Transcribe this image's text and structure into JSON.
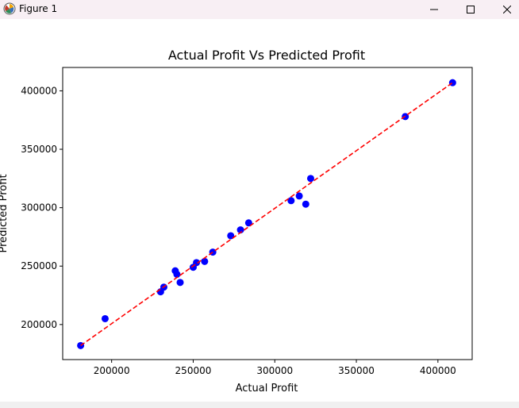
{
  "window": {
    "title": "Figure 1",
    "controls": [
      "minimize-icon",
      "maximize-icon",
      "close-icon"
    ]
  },
  "chart_data": {
    "type": "scatter",
    "title": "Actual Profit Vs Predicted Profit",
    "xlabel": "Actual Profit",
    "ylabel": "Predicted Profit",
    "xlim": [
      170000,
      421000
    ],
    "ylim": [
      170000,
      420000
    ],
    "xticks": [
      200000,
      250000,
      300000,
      350000,
      400000
    ],
    "yticks": [
      200000,
      250000,
      300000,
      350000,
      400000
    ],
    "grid": false,
    "legend": "none",
    "colors": {
      "points": "#0000ff",
      "fit_line": "#ff0000"
    },
    "series": [
      {
        "kind": "points",
        "x": [
          181000,
          196000,
          230000,
          232000,
          239000,
          240000,
          242000,
          250000,
          252000,
          257000,
          262000,
          273000,
          279000,
          284000,
          310000,
          315000,
          319000,
          322000,
          380000,
          409000
        ],
        "y": [
          182000,
          205000,
          228000,
          232000,
          246000,
          243000,
          236000,
          249000,
          253000,
          254000,
          262000,
          276000,
          281000,
          287000,
          306000,
          310000,
          303000,
          325000,
          378000,
          407000
        ]
      },
      {
        "kind": "dashed-line",
        "x": [
          181000,
          409000
        ],
        "y": [
          182000,
          407000
        ]
      }
    ]
  }
}
